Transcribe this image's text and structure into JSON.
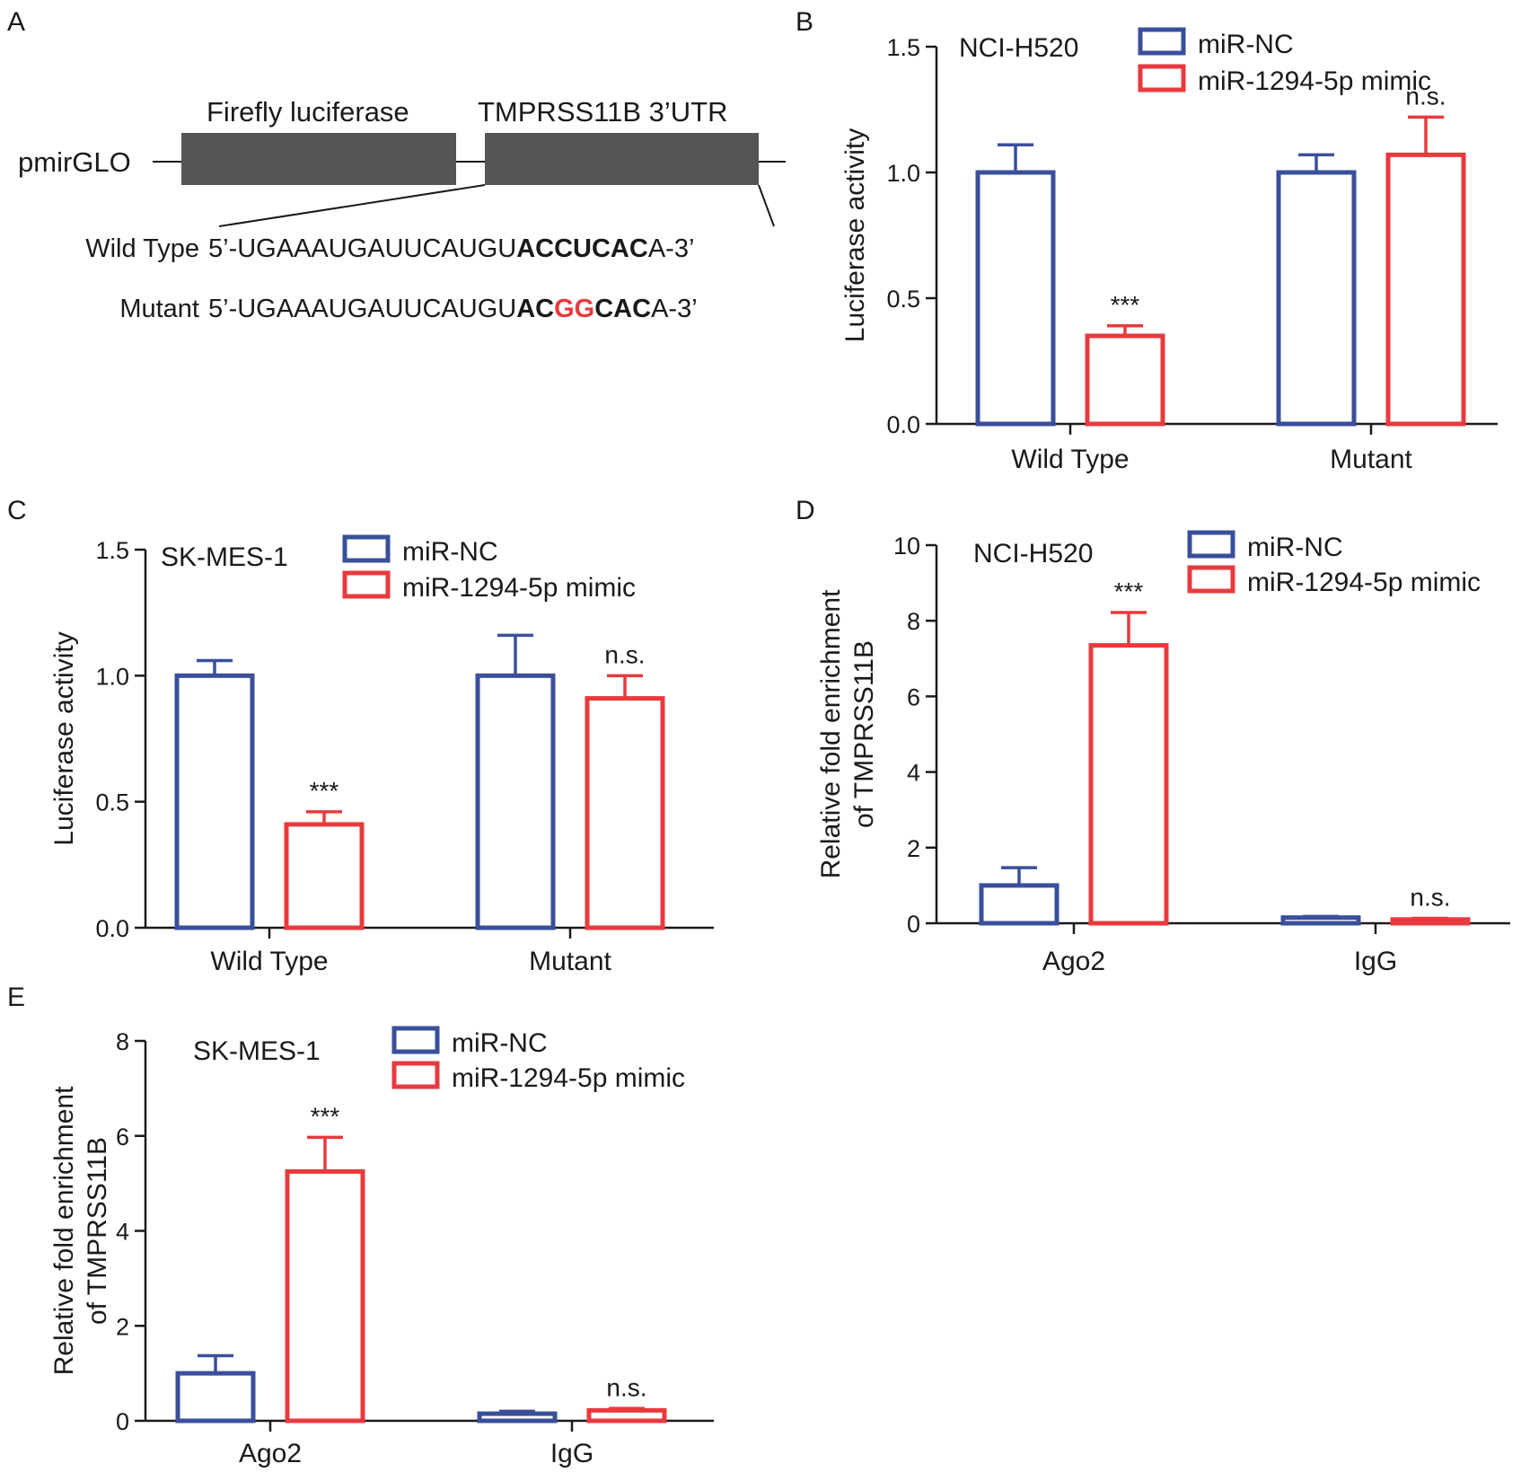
{
  "panels": {
    "A": {
      "letter": "A",
      "vector_label": "pmirGLO",
      "box1_label": "Firefly luciferase",
      "box2_label": "TMPRSS11B 3’UTR",
      "wt_label": "Wild Type",
      "wt_prefix": "5’-UGAAAUGAUUCAUGU",
      "wt_bold": "ACCUCAC",
      "wt_suffix": "A-3’",
      "mut_label": "Mutant",
      "mut_prefix": "5’-UGAAAUGAUUCAUGU",
      "mut_bold1": "AC",
      "mut_red": "GG",
      "mut_bold2": "CAC",
      "mut_suffix": "A-3’",
      "colors": {
        "box": "#555555",
        "mutation": "#e83a3e"
      }
    },
    "B": {
      "letter": "B"
    },
    "C": {
      "letter": "C"
    },
    "D": {
      "letter": "D"
    },
    "E": {
      "letter": "E"
    }
  },
  "colors": {
    "nc": "#3a4f9a",
    "mimic": "#e83a3e",
    "axis": "#1a1a1a"
  },
  "chart_data": [
    {
      "panel": "B",
      "type": "bar",
      "cell_line": "NCI-H520",
      "ylabel": "Luciferase activity",
      "ylim": [
        0,
        1.5
      ],
      "yticks": [
        "0.0",
        "0.5",
        "1.0",
        "1.5"
      ],
      "categories": [
        "Wild Type",
        "Mutant"
      ],
      "legend_position": "top-right",
      "series": [
        {
          "name": "miR-NC",
          "values": [
            1.0,
            1.0
          ],
          "errors": [
            0.11,
            0.07
          ]
        },
        {
          "name": "miR-1294-5p mimic",
          "values": [
            0.35,
            1.07
          ],
          "errors": [
            0.04,
            0.15
          ]
        }
      ],
      "annotations": [
        "***",
        "n.s."
      ]
    },
    {
      "panel": "C",
      "type": "bar",
      "cell_line": "SK-MES-1",
      "ylabel": "Luciferase activity",
      "ylim": [
        0,
        1.5
      ],
      "yticks": [
        "0.0",
        "0.5",
        "1.0",
        "1.5"
      ],
      "categories": [
        "Wild Type",
        "Mutant"
      ],
      "legend_position": "top-right",
      "series": [
        {
          "name": "miR-NC",
          "values": [
            1.0,
            1.0
          ],
          "errors": [
            0.06,
            0.16
          ]
        },
        {
          "name": "miR-1294-5p mimic",
          "values": [
            0.41,
            0.91
          ],
          "errors": [
            0.05,
            0.09
          ]
        }
      ],
      "annotations": [
        "***",
        "n.s."
      ]
    },
    {
      "panel": "D",
      "type": "bar",
      "cell_line": "NCI-H520",
      "ylabel": "Relative fold enrichment",
      "ylabel2": "of TMPRSS11B",
      "ylim": [
        0,
        10
      ],
      "yticks": [
        "0",
        "2",
        "4",
        "6",
        "8",
        "10"
      ],
      "categories": [
        "Ago2",
        "IgG"
      ],
      "legend_position": "top-right",
      "series": [
        {
          "name": "miR-NC",
          "values": [
            1.0,
            0.15
          ],
          "errors": [
            0.47,
            0.03
          ]
        },
        {
          "name": "miR-1294-5p mimic",
          "values": [
            7.35,
            0.1
          ],
          "errors": [
            0.87,
            0.03
          ]
        }
      ],
      "annotations": [
        "***",
        "n.s."
      ]
    },
    {
      "panel": "E",
      "type": "bar",
      "cell_line": "SK-MES-1",
      "ylabel": "Relative fold enrichment",
      "ylabel2": "of TMPRSS11B",
      "ylim": [
        0,
        8
      ],
      "yticks": [
        "0",
        "2",
        "4",
        "6",
        "8"
      ],
      "categories": [
        "Ago2",
        "IgG"
      ],
      "legend_position": "top-right",
      "series": [
        {
          "name": "miR-NC",
          "values": [
            1.0,
            0.15
          ],
          "errors": [
            0.37,
            0.05
          ]
        },
        {
          "name": "miR-1294-5p mimic",
          "values": [
            5.25,
            0.22
          ],
          "errors": [
            0.72,
            0.04
          ]
        }
      ],
      "annotations": [
        "***",
        "n.s."
      ]
    }
  ]
}
